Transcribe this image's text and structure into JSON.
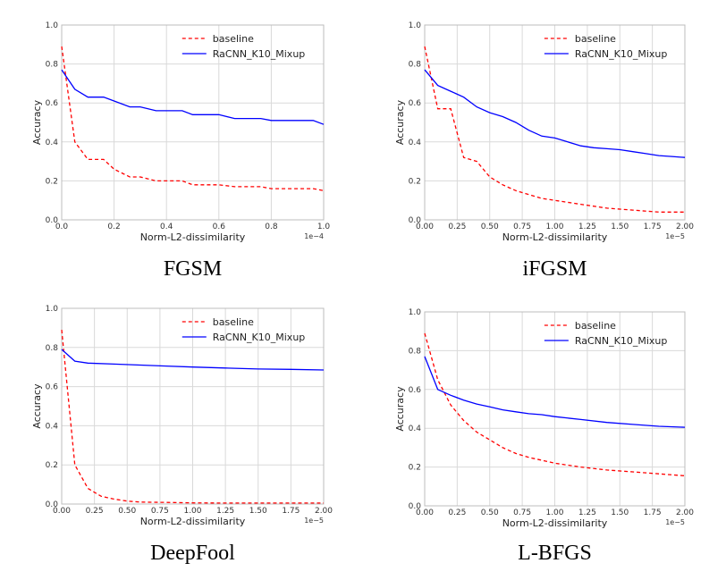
{
  "chart_data": [
    {
      "type": "line",
      "caption": "FGSM",
      "xlabel": "Norm-L2-dissimilarity",
      "ylabel": "Accuracy",
      "x_scale_text": "1e−4",
      "xlim": [
        0,
        1.0
      ],
      "ylim": [
        0,
        1.0
      ],
      "xticks": [
        "0.0",
        "0.2",
        "0.4",
        "0.6",
        "0.8",
        "1.0"
      ],
      "xtick_values": [
        0,
        0.2,
        0.4,
        0.6,
        0.8,
        1.0
      ],
      "yticks": [
        "0.0",
        "0.2",
        "0.4",
        "0.6",
        "0.8",
        "1.0"
      ],
      "ytick_values": [
        0,
        0.2,
        0.4,
        0.6,
        0.8,
        1.0
      ],
      "grid": true,
      "legend_position": "top-right",
      "series": [
        {
          "name": "baseline",
          "color": "#ff0000",
          "style": "dashed",
          "x": [
            0,
            0.05,
            0.1,
            0.16,
            0.2,
            0.26,
            0.3,
            0.36,
            0.4,
            0.46,
            0.5,
            0.56,
            0.6,
            0.66,
            0.7,
            0.76,
            0.8,
            0.86,
            0.9,
            0.96,
            1.0
          ],
          "y": [
            0.89,
            0.4,
            0.31,
            0.31,
            0.26,
            0.22,
            0.22,
            0.2,
            0.2,
            0.2,
            0.18,
            0.18,
            0.18,
            0.17,
            0.17,
            0.17,
            0.16,
            0.16,
            0.16,
            0.16,
            0.15
          ]
        },
        {
          "name": "RaCNN_K10_Mixup",
          "color": "#0000ff",
          "style": "solid",
          "x": [
            0,
            0.05,
            0.1,
            0.16,
            0.2,
            0.26,
            0.3,
            0.36,
            0.4,
            0.46,
            0.5,
            0.56,
            0.6,
            0.66,
            0.7,
            0.76,
            0.8,
            0.86,
            0.9,
            0.96,
            1.0
          ],
          "y": [
            0.77,
            0.67,
            0.63,
            0.63,
            0.61,
            0.58,
            0.58,
            0.56,
            0.56,
            0.56,
            0.54,
            0.54,
            0.54,
            0.52,
            0.52,
            0.52,
            0.51,
            0.51,
            0.51,
            0.51,
            0.49
          ]
        }
      ]
    },
    {
      "type": "line",
      "caption": "iFGSM",
      "xlabel": "Norm-L2-dissimilarity",
      "ylabel": "Accuracy",
      "x_scale_text": "1e−5",
      "xlim": [
        0,
        2.0
      ],
      "ylim": [
        0,
        1.0
      ],
      "xticks": [
        "0.00",
        "0.25",
        "0.50",
        "0.75",
        "1.00",
        "1.25",
        "1.50",
        "1.75",
        "2.00"
      ],
      "xtick_values": [
        0,
        0.25,
        0.5,
        0.75,
        1.0,
        1.25,
        1.5,
        1.75,
        2.0
      ],
      "yticks": [
        "0.0",
        "0.2",
        "0.4",
        "0.6",
        "0.8",
        "1.0"
      ],
      "ytick_values": [
        0,
        0.2,
        0.4,
        0.6,
        0.8,
        1.0
      ],
      "grid": true,
      "legend_position": "top-right",
      "series": [
        {
          "name": "baseline",
          "color": "#ff0000",
          "style": "dashed",
          "x": [
            0,
            0.1,
            0.2,
            0.3,
            0.4,
            0.5,
            0.6,
            0.7,
            0.8,
            0.9,
            1.0,
            1.2,
            1.4,
            1.6,
            1.8,
            2.0
          ],
          "y": [
            0.89,
            0.57,
            0.57,
            0.32,
            0.3,
            0.22,
            0.18,
            0.15,
            0.13,
            0.11,
            0.1,
            0.08,
            0.06,
            0.05,
            0.04,
            0.04
          ]
        },
        {
          "name": "RaCNN_K10_Mixup",
          "color": "#0000ff",
          "style": "solid",
          "x": [
            0,
            0.1,
            0.2,
            0.3,
            0.4,
            0.5,
            0.6,
            0.7,
            0.8,
            0.9,
            1.0,
            1.1,
            1.2,
            1.3,
            1.4,
            1.5,
            1.6,
            1.7,
            1.8,
            1.9,
            2.0
          ],
          "y": [
            0.77,
            0.69,
            0.66,
            0.63,
            0.58,
            0.55,
            0.53,
            0.5,
            0.46,
            0.43,
            0.42,
            0.4,
            0.38,
            0.37,
            0.365,
            0.36,
            0.35,
            0.34,
            0.33,
            0.325,
            0.32
          ]
        }
      ]
    },
    {
      "type": "line",
      "caption": "DeepFool",
      "xlabel": "Norm-L2-dissimilarity",
      "ylabel": "Accuracy",
      "x_scale_text": "1e−5",
      "xlim": [
        0,
        2.0
      ],
      "ylim": [
        0,
        1.0
      ],
      "xticks": [
        "0.00",
        "0.25",
        "0.50",
        "0.75",
        "1.00",
        "1.25",
        "1.50",
        "1.75",
        "2.00"
      ],
      "xtick_values": [
        0,
        0.25,
        0.5,
        0.75,
        1.0,
        1.25,
        1.5,
        1.75,
        2.0
      ],
      "yticks": [
        "0.0",
        "0.2",
        "0.4",
        "0.6",
        "0.8",
        "1.0"
      ],
      "ytick_values": [
        0,
        0.2,
        0.4,
        0.6,
        0.8,
        1.0
      ],
      "grid": true,
      "legend_position": "top-right",
      "series": [
        {
          "name": "baseline",
          "color": "#ff0000",
          "style": "dashed",
          "x": [
            0,
            0.1,
            0.2,
            0.3,
            0.4,
            0.5,
            0.6,
            0.8,
            1.0,
            1.25,
            1.5,
            1.75,
            2.0
          ],
          "y": [
            0.89,
            0.2,
            0.08,
            0.04,
            0.025,
            0.015,
            0.01,
            0.008,
            0.006,
            0.005,
            0.005,
            0.005,
            0.005
          ]
        },
        {
          "name": "RaCNN_K10_Mixup",
          "color": "#0000ff",
          "style": "solid",
          "x": [
            0,
            0.1,
            0.2,
            0.4,
            0.6,
            0.8,
            1.0,
            1.25,
            1.5,
            1.75,
            2.0
          ],
          "y": [
            0.79,
            0.73,
            0.72,
            0.715,
            0.71,
            0.705,
            0.7,
            0.695,
            0.69,
            0.688,
            0.685
          ]
        }
      ]
    },
    {
      "type": "line",
      "caption": "L-BFGS",
      "xlabel": "Norm-L2-dissimilarity",
      "ylabel": "Accuracy",
      "x_scale_text": "1e−5",
      "xlim": [
        0,
        2.0
      ],
      "ylim": [
        0,
        1.0
      ],
      "xticks": [
        "0.00",
        "0.25",
        "0.50",
        "0.75",
        "1.00",
        "1.25",
        "1.50",
        "1.75",
        "2.00"
      ],
      "xtick_values": [
        0,
        0.25,
        0.5,
        0.75,
        1.0,
        1.25,
        1.5,
        1.75,
        2.0
      ],
      "yticks": [
        "0.0",
        "0.2",
        "0.4",
        "0.6",
        "0.8",
        "1.0"
      ],
      "ytick_values": [
        0,
        0.2,
        0.4,
        0.6,
        0.8,
        1.0
      ],
      "grid": true,
      "legend_position": "top-right",
      "series": [
        {
          "name": "baseline",
          "color": "#ff0000",
          "style": "dashed",
          "x": [
            0,
            0.1,
            0.2,
            0.3,
            0.4,
            0.5,
            0.6,
            0.7,
            0.8,
            0.9,
            1.0,
            1.2,
            1.4,
            1.6,
            1.8,
            2.0
          ],
          "y": [
            0.89,
            0.65,
            0.52,
            0.44,
            0.38,
            0.34,
            0.3,
            0.27,
            0.25,
            0.235,
            0.22,
            0.2,
            0.185,
            0.175,
            0.165,
            0.155
          ]
        },
        {
          "name": "RaCNN_K10_Mixup",
          "color": "#0000ff",
          "style": "solid",
          "x": [
            0,
            0.1,
            0.2,
            0.3,
            0.4,
            0.5,
            0.6,
            0.7,
            0.8,
            0.9,
            1.0,
            1.2,
            1.4,
            1.6,
            1.8,
            2.0
          ],
          "y": [
            0.77,
            0.6,
            0.57,
            0.545,
            0.525,
            0.51,
            0.495,
            0.485,
            0.475,
            0.47,
            0.46,
            0.445,
            0.43,
            0.42,
            0.41,
            0.405
          ]
        }
      ]
    }
  ]
}
